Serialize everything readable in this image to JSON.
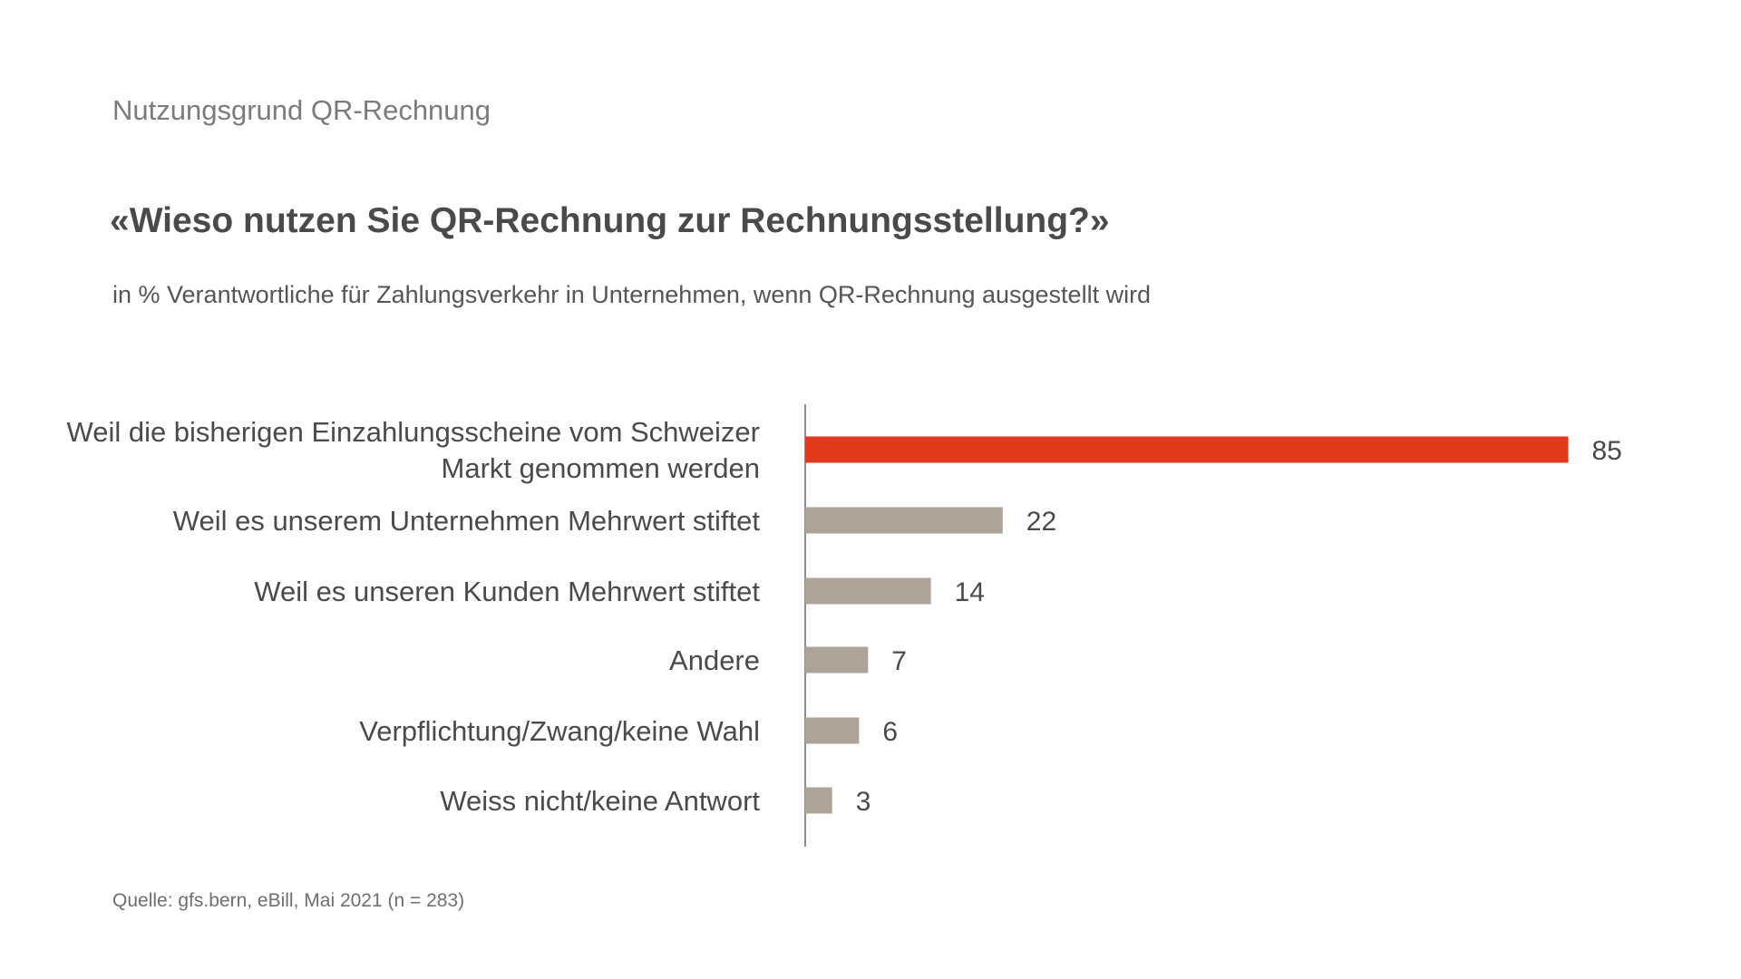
{
  "header": {
    "overline": "Nutzungsgrund QR-Rechnung",
    "question": "«Wieso nutzen Sie QR-Rechnung zur Rechnungsstellung?»",
    "subtitle": "in % Verantwortliche für Zahlungsverkehr in Unternehmen, wenn QR-Rechnung ausgestellt wird"
  },
  "footer": {
    "source": "Quelle: gfs.bern, eBill, Mai 2021 (n = 283)"
  },
  "colors": {
    "highlight": "#df3a1c",
    "bar": "#ada499",
    "axis": "#8c8c8c",
    "text": "#4a4a4a"
  },
  "chart_data": {
    "type": "bar",
    "orientation": "horizontal",
    "categories": [
      [
        "Weil die bisherigen Einzahlungsscheine vom Schweizer",
        "Markt genommen werden"
      ],
      [
        "Weil es unserem Unternehmen Mehrwert stiftet"
      ],
      [
        "Weil es unseren Kunden Mehrwert stiftet"
      ],
      [
        "Andere"
      ],
      [
        "Verpflichtung/Zwang/keine Wahl"
      ],
      [
        "Weiss nicht/keine Antwort"
      ]
    ],
    "values": [
      85,
      22,
      14,
      7,
      6,
      3
    ],
    "highlighted_index": 0,
    "xlim": [
      0,
      100
    ],
    "grid": false,
    "legend": "none"
  }
}
